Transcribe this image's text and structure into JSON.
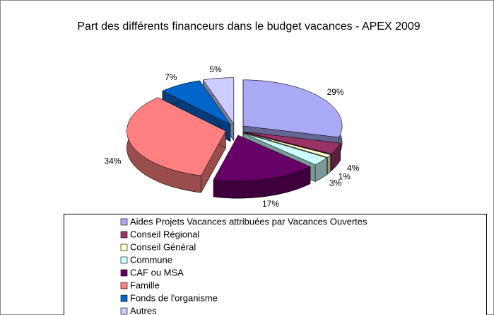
{
  "chart_data": {
    "type": "pie",
    "title": "Part des différents financeurs dans le budget vacances - APEX 2009",
    "categories": [
      "Aides Projets Vacances attribuées par Vacances Ouvertes",
      "Conseil Régional",
      "Conseil Général",
      "Commune",
      "CAF ou MSA",
      "Famille",
      "Fonds de l'organisme",
      "Autres"
    ],
    "values": [
      29,
      4,
      1,
      3,
      17,
      34,
      7,
      5
    ],
    "value_labels": [
      "29%",
      "4%",
      "1%",
      "3%",
      "17%",
      "34%",
      "7%",
      "5%"
    ],
    "colors": [
      "#a9a9f5",
      "#993366",
      "#ffffcc",
      "#ccffff",
      "#660066",
      "#ff8080",
      "#0066cc",
      "#ccccff"
    ],
    "legend": "bottom"
  }
}
